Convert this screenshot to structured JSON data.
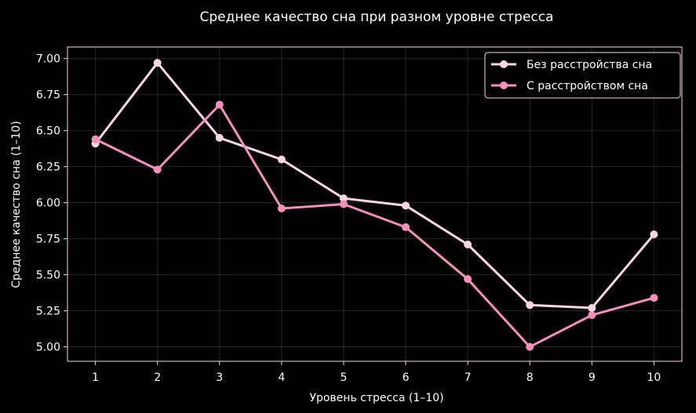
{
  "chart_data": {
    "type": "line",
    "title": "Среднее качество сна при разном уровне стресса",
    "xlabel": "Уровень стресса (1–10)",
    "ylabel": "Среднее качество сна (1–10)",
    "x": [
      1,
      2,
      3,
      4,
      5,
      6,
      7,
      8,
      9,
      10
    ],
    "x_tick_labels": [
      "1",
      "2",
      "3",
      "4",
      "5",
      "6",
      "7",
      "8",
      "9",
      "10"
    ],
    "y_ticks": [
      5.0,
      5.25,
      5.5,
      5.75,
      6.0,
      6.25,
      6.5,
      6.75,
      7.0
    ],
    "y_tick_labels": [
      "5.00",
      "5.25",
      "5.50",
      "5.75",
      "6.00",
      "6.25",
      "6.50",
      "6.75",
      "7.00"
    ],
    "xlim": [
      0.55,
      10.45
    ],
    "ylim": [
      4.9,
      7.08
    ],
    "grid": true,
    "legend_position": "top-right",
    "series": [
      {
        "name": "Без расстройства сна",
        "color": "#f8d7e3",
        "values": [
          6.41,
          6.97,
          6.45,
          6.3,
          6.03,
          5.98,
          5.71,
          5.29,
          5.27,
          5.78
        ]
      },
      {
        "name": "С расстройством сна",
        "color": "#f490bb",
        "values": [
          6.44,
          6.23,
          6.68,
          5.96,
          5.99,
          5.83,
          5.47,
          5.0,
          5.22,
          5.34
        ]
      }
    ],
    "background": "#000000",
    "axes_color": "#f8d7e3"
  }
}
